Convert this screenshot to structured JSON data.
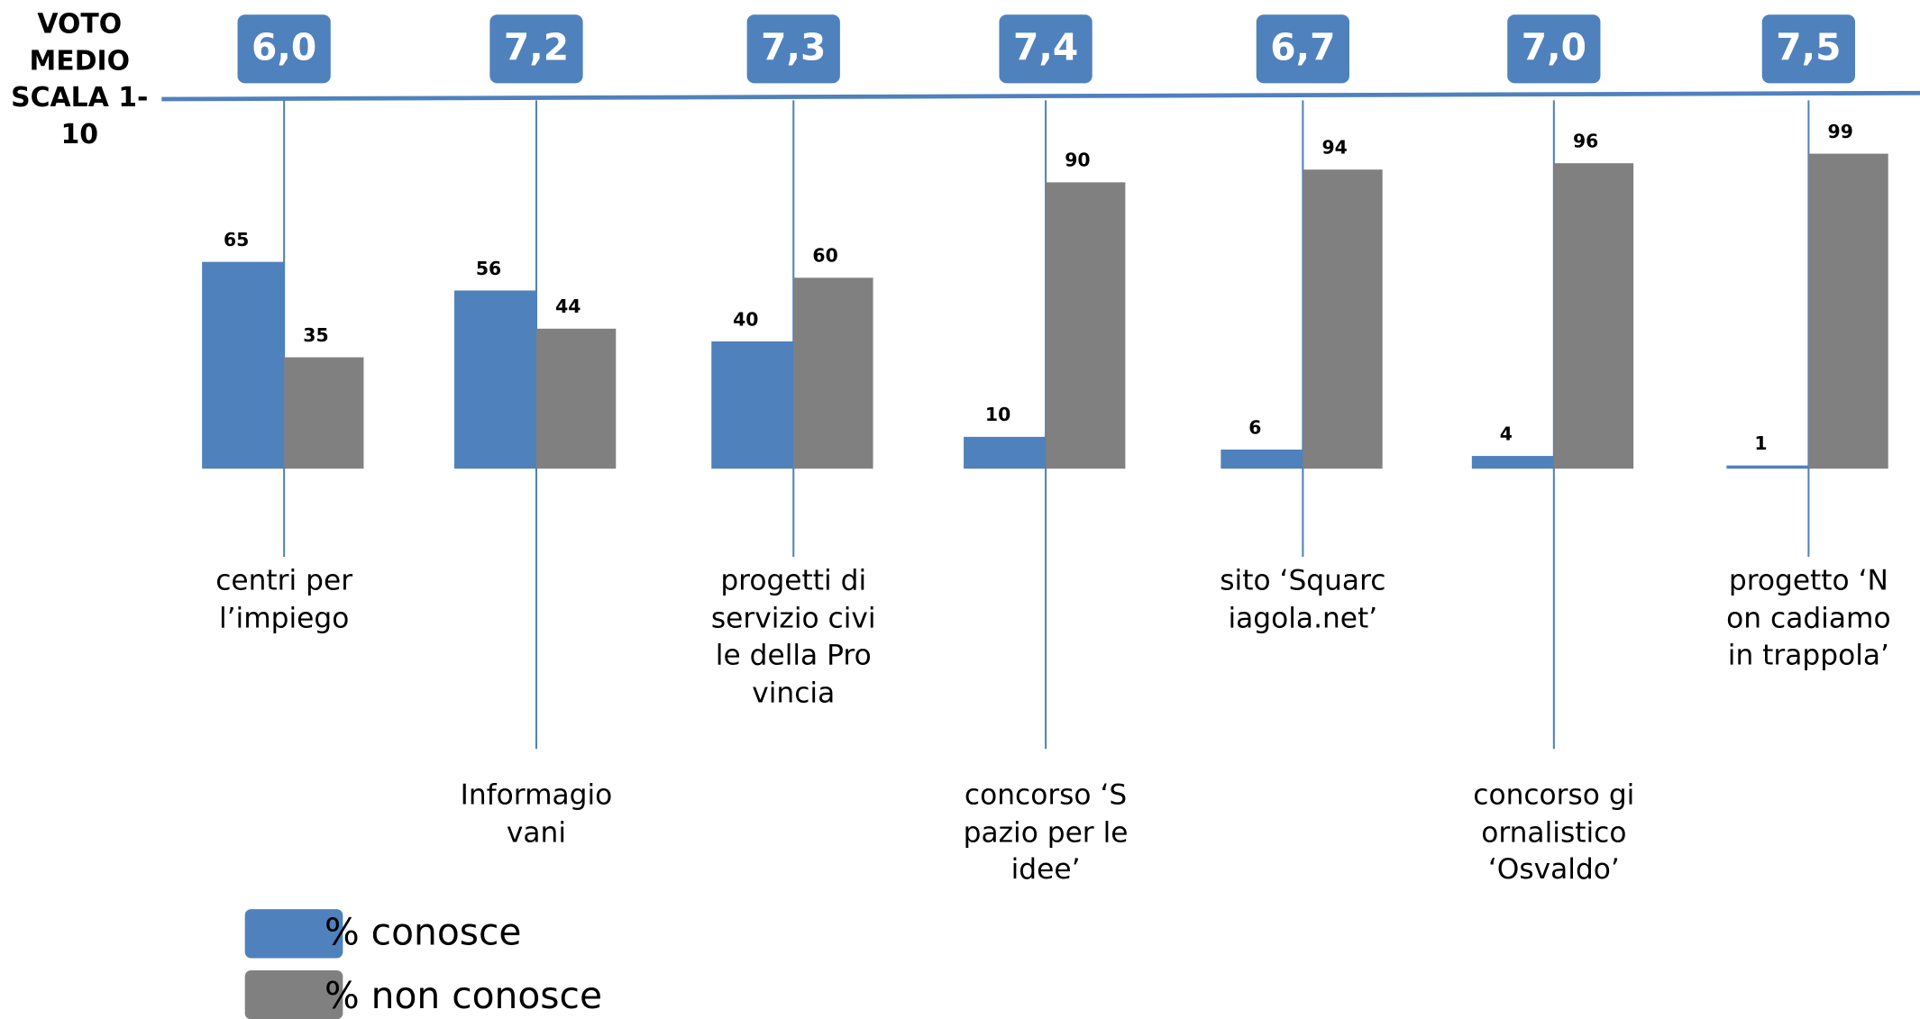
{
  "chart_data": {
    "type": "bar",
    "score_title": "VOTO MEDIO SCALA 1-10",
    "scores": [
      6.0,
      7.2,
      7.3,
      7.4,
      6.7,
      7.0,
      7.5
    ],
    "score_labels": [
      "6,0",
      "7,2",
      "7,3",
      "7,4",
      "6,7",
      "7,0",
      "7,5"
    ],
    "score_color": "#4f81bd",
    "categories": [
      "centri per l’impiego",
      "Informagiovani",
      "progetti di servizio civile della Provincia",
      "concorso ‘Spazio per le idee’",
      "sito ‘Squarciagola.net’",
      "concorso giornalistico ‘Osvaldo’",
      "progetto ‘Non cadiamo in trappola’"
    ],
    "series": [
      {
        "name": "% conosce",
        "color": "#4f81bd",
        "values": [
          65,
          56,
          40,
          10,
          6,
          4,
          1
        ]
      },
      {
        "name": "% non conosce",
        "color": "#808080",
        "values": [
          35,
          44,
          60,
          90,
          94,
          96,
          99
        ]
      }
    ],
    "legend": "bottom-left"
  }
}
